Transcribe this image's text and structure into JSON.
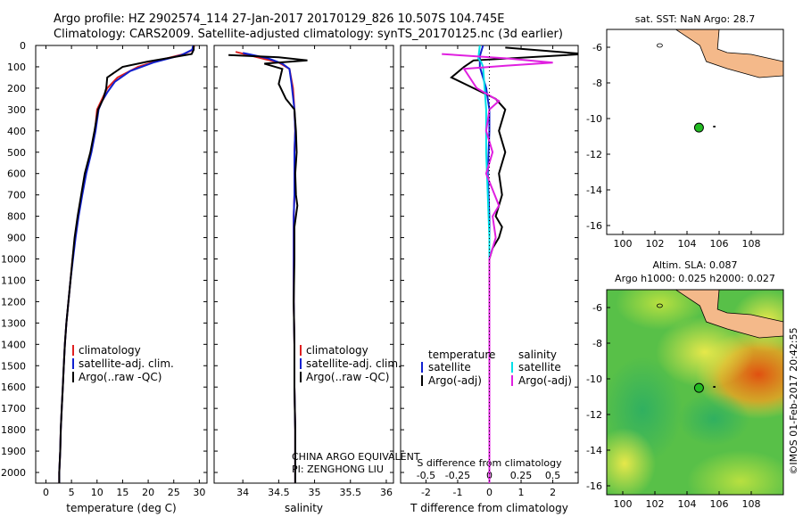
{
  "header": {
    "line1": "Argo profile: HZ 2902574_114 27-Jan-2017 20170129_826 10.507S 104.745E",
    "line2": "Climatology: CARS2009. Satellite-adjusted climatology: synTS_20170125.nc (3d earlier)"
  },
  "colors": {
    "climatology": "#e02020",
    "satellite": "#1020d0",
    "argo": "#000000",
    "cyan": "#00e0e8",
    "magenta": "#e020e0",
    "land": "#f4b98a",
    "dot": "#22bb22"
  },
  "depth_axis": {
    "ticks": [
      0,
      100,
      200,
      300,
      400,
      500,
      600,
      700,
      800,
      900,
      1000,
      1100,
      1200,
      1300,
      1400,
      1500,
      1600,
      1700,
      1800,
      1900,
      2000
    ]
  },
  "chart_data": [
    {
      "id": "temperature",
      "type": "line",
      "xlabel": "temperature (deg C)",
      "ylabel": "depth",
      "xlim": [
        -2,
        31.5
      ],
      "ylim": [
        2050,
        0
      ],
      "xticks": [
        0,
        5,
        10,
        15,
        20,
        25,
        30
      ],
      "legend": [
        "climatology",
        "satellite-adj. clim.",
        "Argo(..raw -QC)"
      ],
      "series": [
        {
          "name": "climatology",
          "color": "climatology",
          "points": [
            [
              29.0,
              0
            ],
            [
              28.8,
              20
            ],
            [
              27,
              40
            ],
            [
              22,
              70
            ],
            [
              18,
              100
            ],
            [
              14,
              150
            ],
            [
              12,
              200
            ],
            [
              11,
              250
            ],
            [
              10,
              300
            ],
            [
              9.6,
              400
            ],
            [
              8.8,
              500
            ],
            [
              7.8,
              600
            ],
            [
              7,
              700
            ],
            [
              6.3,
              800
            ],
            [
              5.7,
              900
            ],
            [
              5.2,
              1000
            ],
            [
              4.8,
              1100
            ],
            [
              4.4,
              1200
            ],
            [
              4.0,
              1300
            ],
            [
              3.7,
              1400
            ],
            [
              3.5,
              1500
            ],
            [
              3.3,
              1600
            ],
            [
              3.1,
              1700
            ],
            [
              2.9,
              1800
            ],
            [
              2.8,
              1900
            ],
            [
              2.6,
              2000
            ],
            [
              2.6,
              2050
            ]
          ]
        },
        {
          "name": "satellite",
          "color": "satellite",
          "points": [
            [
              28.8,
              0
            ],
            [
              28.6,
              20
            ],
            [
              26.5,
              45
            ],
            [
              21,
              80
            ],
            [
              16.5,
              120
            ],
            [
              13.5,
              170
            ],
            [
              12,
              220
            ],
            [
              11,
              260
            ],
            [
              10.3,
              300
            ],
            [
              9.7,
              400
            ],
            [
              8.9,
              500
            ],
            [
              7.9,
              600
            ],
            [
              7.1,
              700
            ],
            [
              6.4,
              800
            ],
            [
              5.8,
              900
            ],
            [
              5.3,
              1000
            ],
            [
              4.8,
              1100
            ],
            [
              4.4,
              1200
            ],
            [
              4.0,
              1300
            ],
            [
              3.7,
              1400
            ],
            [
              3.5,
              1500
            ],
            [
              3.3,
              1600
            ],
            [
              3.1,
              1700
            ],
            [
              2.9,
              1800
            ],
            [
              2.8,
              1900
            ],
            [
              2.6,
              2000
            ],
            [
              2.6,
              2050
            ]
          ]
        },
        {
          "name": "argo",
          "color": "argo",
          "points": [
            [
              28.9,
              0
            ],
            [
              28.9,
              20
            ],
            [
              28.5,
              40
            ],
            [
              20,
              75
            ],
            [
              15,
              100
            ],
            [
              12,
              150
            ],
            [
              11.8,
              200
            ],
            [
              11.2,
              250
            ],
            [
              10.2,
              300
            ],
            [
              9.5,
              400
            ],
            [
              8.7,
              500
            ],
            [
              7.6,
              600
            ],
            [
              6.9,
              700
            ],
            [
              6.2,
              800
            ],
            [
              5.6,
              900
            ],
            [
              5.2,
              1000
            ],
            [
              4.8,
              1100
            ],
            [
              4.4,
              1200
            ],
            [
              4.0,
              1300
            ],
            [
              3.7,
              1400
            ],
            [
              3.5,
              1500
            ],
            [
              3.3,
              1600
            ],
            [
              3.1,
              1700
            ],
            [
              2.9,
              1800
            ],
            [
              2.8,
              1900
            ],
            [
              2.6,
              2000
            ],
            [
              2.6,
              2050
            ]
          ]
        }
      ]
    },
    {
      "id": "salinity",
      "type": "line",
      "xlabel": "salinity",
      "ylabel": "depth",
      "xlim": [
        33.6,
        36.1
      ],
      "ylim": [
        2050,
        0
      ],
      "xticks": [
        34,
        34.5,
        35,
        35.5,
        36
      ],
      "legend": [
        "climatology",
        "satellite-adj. clim.",
        "Argo(..raw -QC)"
      ],
      "annotations": [
        "CHINA ARGO EQUIVALENT",
        "PI: ZENGHONG LIU"
      ],
      "series": [
        {
          "name": "climatology",
          "color": "climatology",
          "points": [
            [
              33.9,
              30
            ],
            [
              34.2,
              55
            ],
            [
              34.5,
              80
            ],
            [
              34.65,
              110
            ],
            [
              34.7,
              200
            ],
            [
              34.72,
              300
            ],
            [
              34.73,
              400
            ],
            [
              34.72,
              500
            ],
            [
              34.72,
              600
            ],
            [
              34.72,
              700
            ],
            [
              34.71,
              800
            ],
            [
              34.71,
              1000
            ],
            [
              34.71,
              1200
            ],
            [
              34.72,
              1400
            ],
            [
              34.72,
              1600
            ],
            [
              34.73,
              1800
            ],
            [
              34.73,
              2000
            ],
            [
              34.73,
              2050
            ]
          ]
        },
        {
          "name": "satellite",
          "color": "satellite",
          "points": [
            [
              34.0,
              35
            ],
            [
              34.35,
              60
            ],
            [
              34.55,
              85
            ],
            [
              34.65,
              110
            ],
            [
              34.68,
              180
            ],
            [
              34.72,
              300
            ],
            [
              34.73,
              400
            ],
            [
              34.72,
              500
            ],
            [
              34.72,
              600
            ],
            [
              34.72,
              700
            ],
            [
              34.71,
              800
            ],
            [
              34.71,
              1000
            ],
            [
              34.71,
              1200
            ],
            [
              34.72,
              1400
            ],
            [
              34.72,
              1600
            ],
            [
              34.73,
              1800
            ],
            [
              34.73,
              2000
            ],
            [
              34.73,
              2050
            ]
          ]
        },
        {
          "name": "argo",
          "color": "argo",
          "points": [
            [
              33.8,
              45
            ],
            [
              34.5,
              55
            ],
            [
              34.9,
              70
            ],
            [
              34.3,
              85
            ],
            [
              34.55,
              110
            ],
            [
              34.5,
              180
            ],
            [
              34.6,
              250
            ],
            [
              34.72,
              300
            ],
            [
              34.74,
              400
            ],
            [
              34.75,
              500
            ],
            [
              34.73,
              600
            ],
            [
              34.74,
              700
            ],
            [
              34.76,
              750
            ],
            [
              34.72,
              850
            ],
            [
              34.72,
              1000
            ],
            [
              34.71,
              1200
            ],
            [
              34.72,
              1400
            ],
            [
              34.72,
              1600
            ],
            [
              34.73,
              1800
            ],
            [
              34.73,
              2000
            ],
            [
              34.73,
              2050
            ]
          ]
        }
      ]
    },
    {
      "id": "difference",
      "type": "line",
      "xlabel": "T difference from climatology",
      "xlabel_top": "S difference from climatology",
      "ylabel": "depth",
      "xlim": [
        -2.8,
        2.8
      ],
      "ylim": [
        2050,
        0
      ],
      "xticks": [
        -2,
        -1,
        0,
        1,
        2
      ],
      "xticks_top": [
        -0.5,
        -0.25,
        0,
        0.25,
        0.5
      ],
      "legend": {
        "temperature": [
          "satellite",
          "Argo(-adj)"
        ],
        "salinity": [
          "satellite",
          "Argo(-adj)"
        ],
        "heads": [
          "temperature",
          "salinity"
        ]
      },
      "series": [
        {
          "name": "T satellite",
          "color": "satellite",
          "points": [
            [
              -0.2,
              0
            ],
            [
              -0.3,
              50
            ],
            [
              -0.3,
              100
            ],
            [
              -0.1,
              200
            ],
            [
              0,
              300
            ],
            [
              0,
              400
            ],
            [
              -0.05,
              600
            ],
            [
              0,
              800
            ],
            [
              0,
              1000
            ],
            [
              0,
              1500
            ],
            [
              0,
              2050
            ]
          ]
        },
        {
          "name": "T Argo(-adj)",
          "color": "argo",
          "points": [
            [
              0.5,
              10
            ],
            [
              3,
              40
            ],
            [
              -0.5,
              70
            ],
            [
              -0.8,
              100
            ],
            [
              -1.2,
              150
            ],
            [
              -0.5,
              200
            ],
            [
              0.2,
              250
            ],
            [
              0.5,
              300
            ],
            [
              0.3,
              400
            ],
            [
              0.5,
              500
            ],
            [
              0.3,
              600
            ],
            [
              0.4,
              700
            ],
            [
              0.2,
              800
            ],
            [
              0.4,
              850
            ],
            [
              0.3,
              900
            ],
            [
              0.1,
              950
            ],
            [
              0,
              1000
            ],
            [
              0,
              1500
            ],
            [
              0,
              2050
            ]
          ]
        },
        {
          "name": "S satellite",
          "color": "cyan",
          "points": [
            [
              -0.3,
              0
            ],
            [
              -0.35,
              60
            ],
            [
              -0.25,
              80
            ],
            [
              -0.2,
              100
            ],
            [
              -0.15,
              200
            ],
            [
              -0.1,
              300
            ],
            [
              -0.1,
              500
            ],
            [
              -0.05,
              700
            ],
            [
              0,
              900
            ],
            [
              0,
              1200
            ],
            [
              0,
              2050
            ]
          ]
        },
        {
          "name": "S Argo(-adj)",
          "color": "magenta",
          "points": [
            [
              -1.5,
              40
            ],
            [
              0.5,
              60
            ],
            [
              2,
              80
            ],
            [
              0.5,
              95
            ],
            [
              -0.8,
              110
            ],
            [
              -0.4,
              200
            ],
            [
              0.3,
              260
            ],
            [
              0,
              300
            ],
            [
              -0.1,
              400
            ],
            [
              0.1,
              500
            ],
            [
              -0.1,
              600
            ],
            [
              0.3,
              750
            ],
            [
              0.1,
              800
            ],
            [
              0.2,
              900
            ],
            [
              0,
              1000
            ],
            [
              0,
              2050
            ]
          ]
        }
      ]
    }
  ],
  "map_sst": {
    "title": "sat. SST: NaN Argo: 28.7",
    "lon": [
      99,
      110
    ],
    "lat": [
      -16.5,
      -5
    ],
    "lon_ticks": [
      100,
      102,
      104,
      106,
      108
    ],
    "lat_ticks": [
      -6,
      -8,
      -10,
      -12,
      -14,
      -16
    ],
    "float": [
      104.745,
      -10.507
    ]
  },
  "map_sla": {
    "title1": "Altim. SLA: 0.087",
    "title2": "Argo h1000: 0.025 h2000: 0.027",
    "lon": [
      99,
      110
    ],
    "lat": [
      -16.5,
      -5
    ],
    "lon_ticks": [
      100,
      102,
      104,
      106,
      108
    ],
    "lat_ticks": [
      -6,
      -8,
      -10,
      -12,
      -14,
      -16
    ],
    "float": [
      104.745,
      -10.507
    ]
  },
  "credit": "©IMOS 01-Feb-2017 20:42:55"
}
